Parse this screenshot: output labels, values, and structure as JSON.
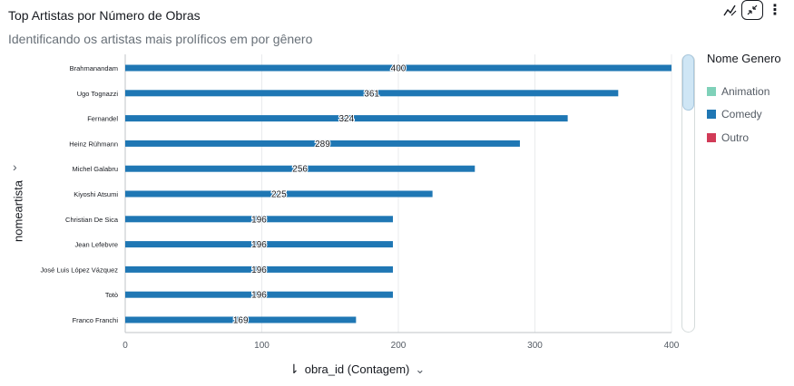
{
  "header": {
    "title": "Top Artistas por Número de Obras",
    "subtitle": "Identificando os artistas mais prolíficos em por gênero"
  },
  "toolbar": {
    "icons": [
      "chart-options-icon",
      "collapse-icon",
      "more-options-icon"
    ],
    "more_glyph": "⋮",
    "collapse_glyph": "↙↗"
  },
  "axes": {
    "y_label": "nomeartista",
    "y_chevron": "›",
    "x_label": "obra_id (Contagem)",
    "x_chevron": "⌄",
    "sort_glyph": "⇂"
  },
  "legend": {
    "title": "Nome Genero",
    "items": [
      {
        "label": "Animation",
        "color": "#7fd1b9"
      },
      {
        "label": "Comedy",
        "color": "#1f77b4"
      },
      {
        "label": "Outro",
        "color": "#d13b57"
      }
    ]
  },
  "chart_data": {
    "type": "bar",
    "orientation": "horizontal",
    "categories": [
      "Brahmanandam",
      "Ugo Tognazzi",
      "Fernandel",
      "Heinz Rühmann",
      "Michel Galabru",
      "Kiyoshi Atsumi",
      "Christian De Sica",
      "Jean Lefebvre",
      "José Luis López Vázquez",
      "Totò",
      "Franco Franchi"
    ],
    "series": [
      {
        "name": "Comedy",
        "color": "#1f77b4",
        "values": [
          400,
          361,
          324,
          289,
          256,
          225,
          196,
          196,
          196,
          196,
          169
        ]
      }
    ],
    "data_labels": [
      "400",
      "361",
      "324",
      "289",
      "256",
      "225",
      "196",
      "196",
      "196",
      "196",
      "169"
    ],
    "xlim": [
      0,
      400
    ],
    "x_ticks": [
      "0",
      "100",
      "200",
      "300",
      "400"
    ],
    "x_tick_values": [
      0,
      100,
      200,
      300,
      400
    ],
    "grid": "vertical",
    "legend_position": "right"
  }
}
